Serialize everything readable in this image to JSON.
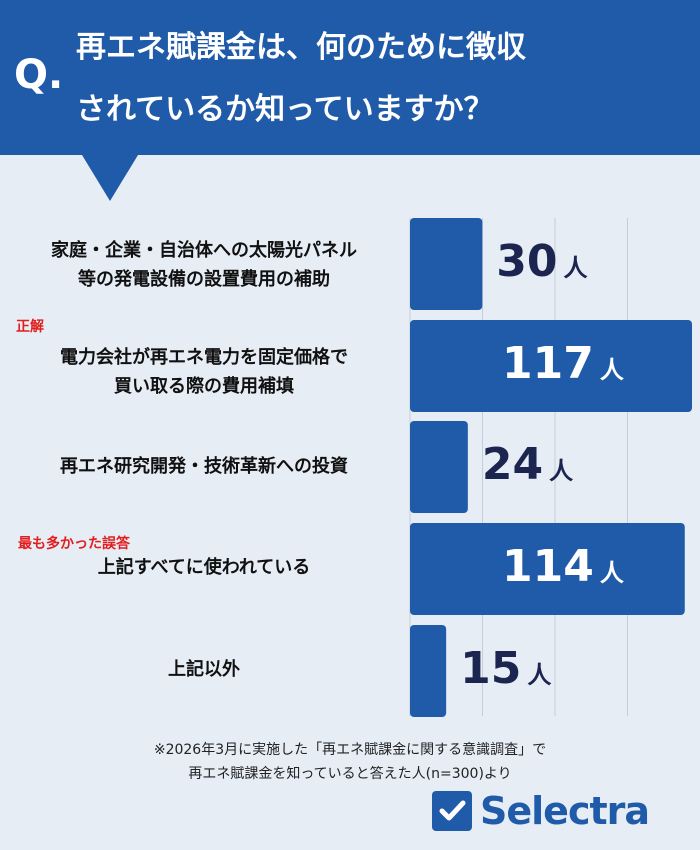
{
  "header": {
    "q_mark": "Q.",
    "line1": "再エネ賦課金は、何のために徴収",
    "line2": "されているか知っていますか？"
  },
  "chart_data": {
    "type": "bar",
    "orientation": "horizontal",
    "categories": [
      [
        "家庭・企業・自治体への太陽光パネル",
        "等の発電設備の設置費用の補助"
      ],
      [
        "電力会社が再エネ電力を固定価格で",
        "買い取る際の費用補填"
      ],
      [
        "再エネ研究開発・技術革新への投資"
      ],
      [
        "上記すべてに使われている"
      ],
      [
        "上記以外"
      ]
    ],
    "values": [
      30,
      117,
      24,
      114,
      15
    ],
    "unit": "人",
    "tags": [
      "",
      "正解",
      "",
      "最も多かった誤答",
      ""
    ],
    "xlim": [
      0,
      120
    ],
    "grid": true,
    "bar_color": "#1f5ba8",
    "value_color_inside": "#ffffff",
    "value_color_outside": "#1b2550",
    "tag_color": "#e21d1d"
  },
  "footnote": {
    "line1": "※2026年3月に実施した「再エネ賦課金に関する意識調査」で",
    "line2": "再エネ賦課金を知っていると答えた人(n=300)より"
  },
  "logo": {
    "text": "Selectra",
    "color": "#1f5ba8"
  }
}
